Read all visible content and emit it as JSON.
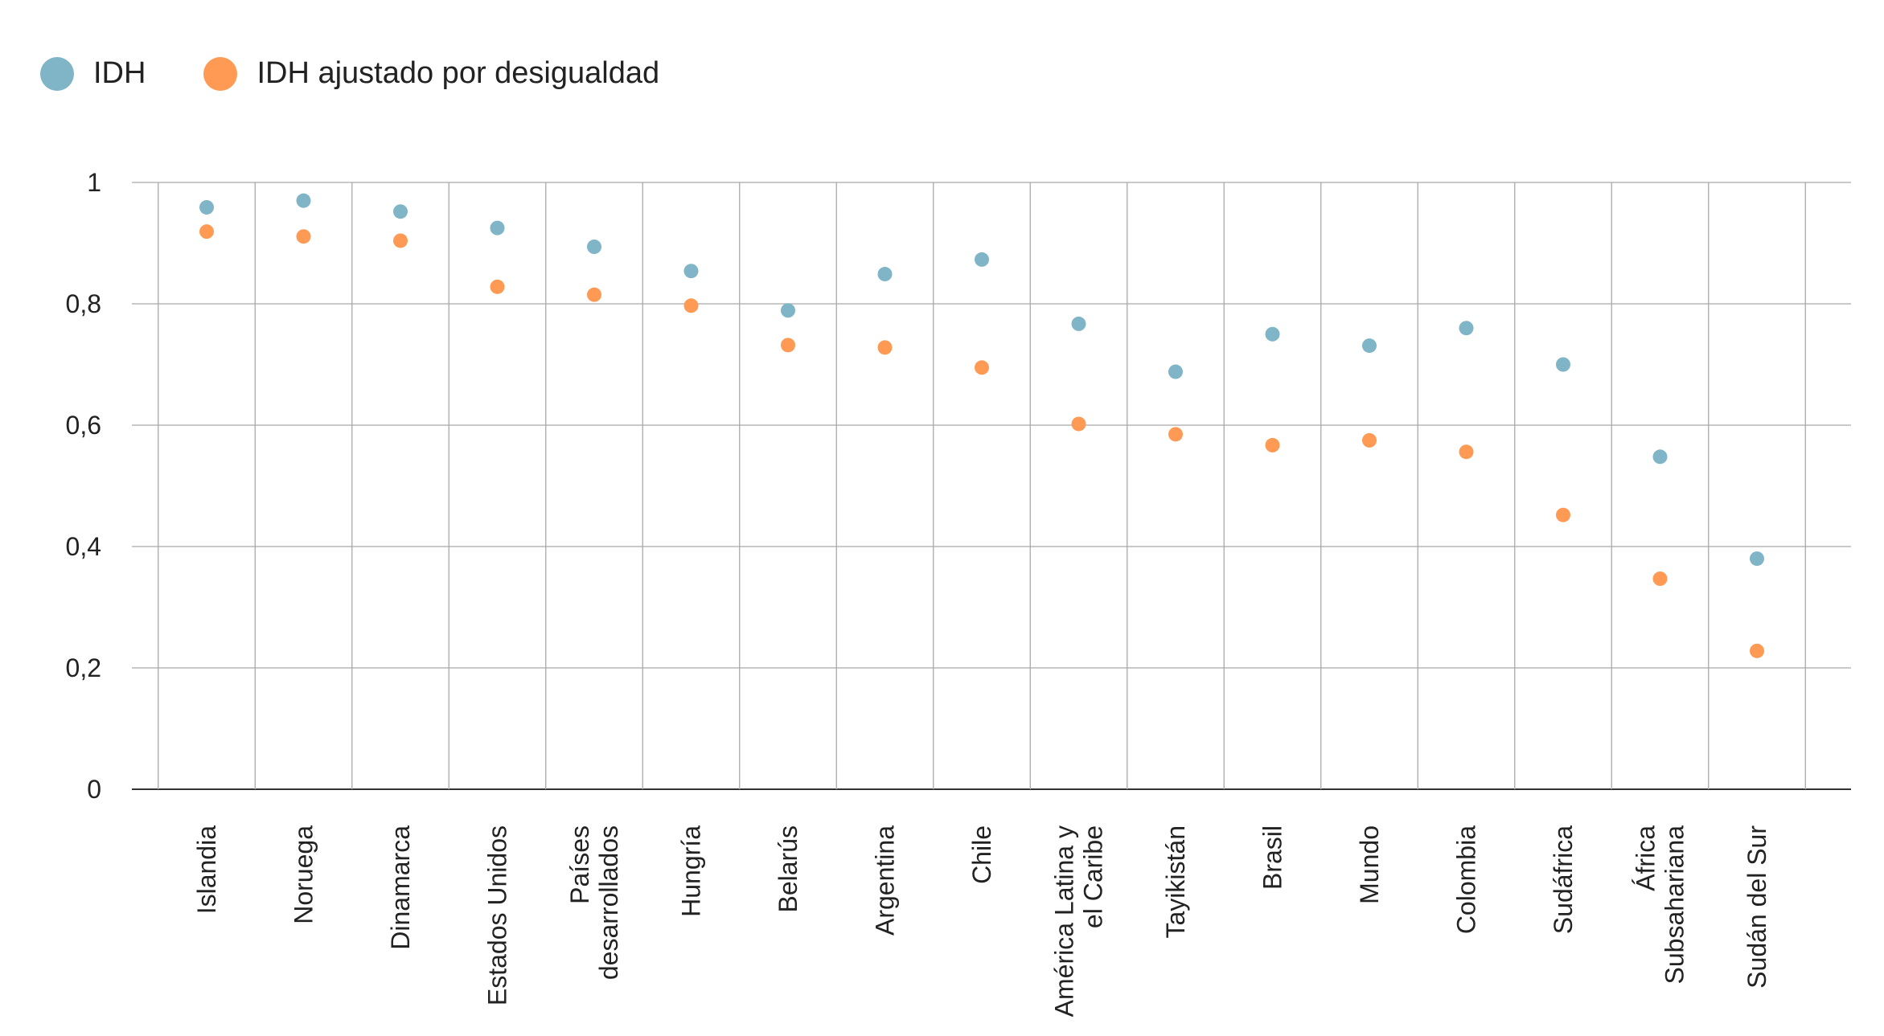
{
  "legend": {
    "items": [
      {
        "label": "IDH",
        "color": "#7fb5c6"
      },
      {
        "label": "IDH ajustado por desigualdad",
        "color": "#ff9a54"
      }
    ]
  },
  "chart_data": {
    "type": "scatter",
    "title": "",
    "xlabel": "",
    "ylabel": "",
    "ylim": [
      0,
      1
    ],
    "yticks": [
      0,
      0.2,
      0.4,
      0.6,
      0.8,
      1
    ],
    "ytick_labels": [
      "0",
      "0,2",
      "0,4",
      "0,6",
      "0,8",
      "1"
    ],
    "grid": true,
    "legend_position": "top-left",
    "categories": [
      [
        "Islandia"
      ],
      [
        "Noruega"
      ],
      [
        "Dinamarca"
      ],
      [
        "Estados Unidos"
      ],
      [
        "Países",
        "desarrollados"
      ],
      [
        "Hungría"
      ],
      [
        "Belarús"
      ],
      [
        "Argentina"
      ],
      [
        "Chile"
      ],
      [
        "América Latina y",
        "el Caribe"
      ],
      [
        "Tayikistán"
      ],
      [
        "Brasil"
      ],
      [
        "Mundo"
      ],
      [
        "Colombia"
      ],
      [
        "Sudáfrica"
      ],
      [
        "África",
        "Subsahariana"
      ],
      [
        "Sudán del Sur"
      ]
    ],
    "series": [
      {
        "name": "IDH",
        "color": "#7fb5c6",
        "values": [
          0.959,
          0.97,
          0.952,
          0.925,
          0.894,
          0.854,
          0.789,
          0.849,
          0.873,
          0.767,
          0.688,
          0.75,
          0.731,
          0.76,
          0.7,
          0.548,
          0.38
        ]
      },
      {
        "name": "IDH ajustado por desigualdad",
        "color": "#ff9a54",
        "values": [
          0.919,
          0.911,
          0.904,
          0.828,
          0.815,
          0.797,
          0.732,
          0.728,
          0.695,
          0.602,
          0.585,
          0.567,
          0.575,
          0.556,
          0.452,
          0.347,
          0.228
        ]
      }
    ]
  }
}
